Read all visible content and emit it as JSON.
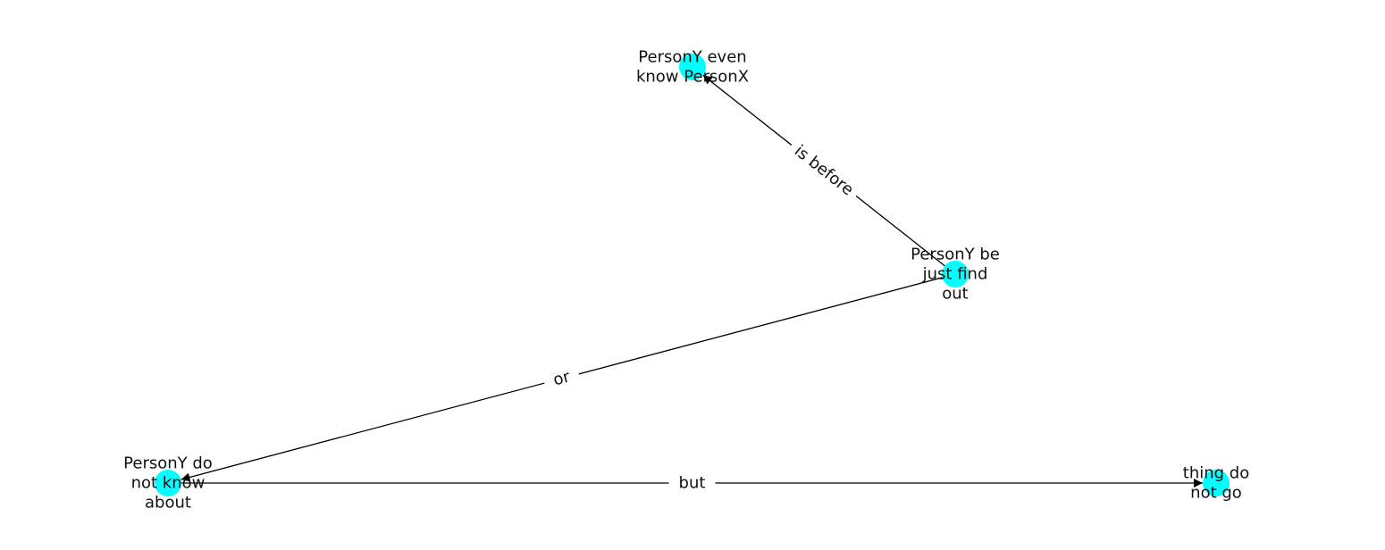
{
  "node_color": "#00ffff",
  "edge_color": "#000000",
  "nodes": [
    {
      "id": "n1",
      "lines": [
        "PersonY even",
        "know PersonX"
      ]
    },
    {
      "id": "n2",
      "lines": [
        "PersonY be",
        "just find",
        "out"
      ]
    },
    {
      "id": "n3",
      "lines": [
        "PersonY do",
        "not know",
        "about"
      ]
    },
    {
      "id": "n4",
      "lines": [
        "thing do",
        "not go"
      ]
    }
  ],
  "edges": [
    {
      "from": "n2",
      "to": "n1",
      "label": "is before"
    },
    {
      "from": "n2",
      "to": "n3",
      "label": "or"
    },
    {
      "from": "n3",
      "to": "n4",
      "label": "but"
    }
  ]
}
